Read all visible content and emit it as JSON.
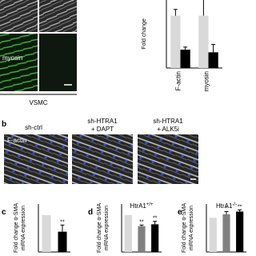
{
  "figure": {
    "image_labels": {
      "myosin": "myosin",
      "vsmc": "VSMC",
      "f_actin": "F-actin"
    },
    "panel_letters": {
      "b": "b",
      "c": "c",
      "d": "d",
      "e": "e"
    },
    "conditions": [
      [
        "sh-ctrl"
      ],
      [
        "sh-HTRA1",
        "+ DAPT"
      ],
      [
        "sh-HTRA1",
        "+ ALK5i"
      ]
    ]
  },
  "chart_data": [
    {
      "type": "bar",
      "ylabel": [
        "Fold change"
      ],
      "categories": [
        "F-actin",
        "myosin"
      ],
      "series": [
        {
          "color": "#d9d9d9",
          "values": [
            1.0,
            1.0
          ],
          "errors": [
            0.12,
            0.4
          ]
        },
        {
          "color": "#000000",
          "values": [
            0.35,
            0.3
          ],
          "errors": [
            0.05,
            0.15
          ]
        }
      ],
      "ylim": [
        0,
        1.3
      ]
    },
    {
      "type": "bar",
      "ylabel": [
        "Fold change α-SMA",
        "mRNA expression"
      ],
      "categories": [
        null,
        null
      ],
      "series": [
        {
          "colors": [
            "#d9d9d9",
            "#000000"
          ],
          "values": [
            1.0,
            0.55
          ],
          "errors": [
            0,
            0.18
          ]
        }
      ],
      "significance": [
        null,
        "**"
      ],
      "ylim": [
        0,
        1.3
      ]
    },
    {
      "type": "bar",
      "title": "HtrA1",
      "title_sup": "+/+",
      "ylabel": [
        "Fold change α-SMA",
        "mRNA expression"
      ],
      "categories": [
        null,
        null,
        null
      ],
      "series": [
        {
          "colors": [
            "#d9d9d9",
            "#808080",
            "#000000"
          ],
          "values": [
            1.0,
            0.7,
            0.75
          ],
          "errors": [
            0,
            0.03,
            0.08
          ]
        }
      ],
      "significance": [
        null,
        "**",
        "**"
      ],
      "ylim": [
        0,
        1.3
      ]
    },
    {
      "type": "bar",
      "title": "HtrA1",
      "title_sup": "-/-",
      "ylabel": [
        "Fold change α-SMA",
        "mRNA expression"
      ],
      "categories": [
        null,
        null,
        null
      ],
      "series": [
        {
          "colors": [
            "#d9d9d9",
            "#808080",
            "#000000"
          ],
          "values": [
            1.0,
            1.1,
            1.18
          ],
          "errors": [
            0,
            0.08,
            0.05
          ]
        }
      ],
      "significance": [
        null,
        "*",
        "**"
      ],
      "ylim": [
        0,
        1.4
      ]
    }
  ]
}
